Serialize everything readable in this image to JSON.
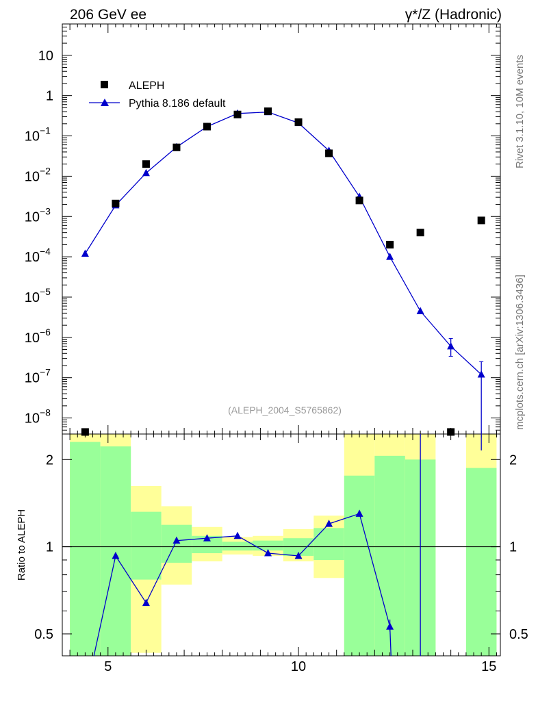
{
  "header": {
    "left_title": "206 GeV ee",
    "right_title": "γ*/Z (Hadronic)",
    "side_label_top": "Rivet 3.1.10,  10M events",
    "side_label_bottom": "mcplots.cern.ch [arXiv:1306.3436]",
    "watermark": "(ALEPH_2004_S5765862)"
  },
  "legend": {
    "position": "top-left",
    "entries": [
      {
        "label": "ALEPH",
        "marker": "square",
        "color": "#000000"
      },
      {
        "label": "Pythia 8.186 default",
        "marker": "triangle-line",
        "color": "#0000cc"
      }
    ]
  },
  "chart_data": [
    {
      "type": "scatter",
      "panel": "main",
      "x_range": [
        3.8,
        15.3
      ],
      "y_scale": "log",
      "y_range": [
        4e-09,
        60
      ],
      "y_tick_labels": [
        {
          "value": 10,
          "label": "10"
        },
        {
          "value": 1,
          "label": "1"
        },
        {
          "value": 0.1,
          "label": "10",
          "exp": "−1"
        },
        {
          "value": 0.01,
          "label": "10",
          "exp": "−2"
        },
        {
          "value": 0.001,
          "label": "10",
          "exp": "−3"
        },
        {
          "value": 0.0001,
          "label": "10",
          "exp": "−4"
        },
        {
          "value": 1e-05,
          "label": "10",
          "exp": "−5"
        },
        {
          "value": 1e-06,
          "label": "10",
          "exp": "−6"
        },
        {
          "value": 1e-07,
          "label": "10",
          "exp": "−7"
        },
        {
          "value": 1e-08,
          "label": "10",
          "exp": "−8"
        }
      ],
      "series": [
        {
          "name": "ALEPH",
          "x": [
            4.4,
            5.2,
            6.0,
            6.8,
            7.6,
            8.4,
            9.2,
            10.0,
            10.8,
            11.6,
            12.4,
            13.2,
            14.0,
            14.8
          ],
          "y": [
            4.5e-09,
            0.0021,
            0.02,
            0.052,
            0.17,
            0.34,
            0.41,
            0.22,
            0.037,
            0.0025,
            0.0002,
            0.0004,
            4.5e-09,
            0.0008
          ]
        },
        {
          "name": "Pythia 8.186 default",
          "x": [
            4.4,
            5.2,
            6.0,
            6.8,
            7.6,
            8.4,
            9.2,
            10.0,
            10.8,
            11.6,
            12.4,
            13.2,
            14.0,
            14.8
          ],
          "y": [
            0.00012,
            0.0019,
            0.012,
            0.053,
            0.17,
            0.36,
            0.39,
            0.21,
            0.043,
            0.0031,
            0.0001,
            4.5e-06,
            6e-07,
            1.2e-07
          ],
          "err_low": [
            0,
            0,
            0,
            0,
            0,
            0,
            0,
            0,
            0,
            0,
            0,
            0,
            2.6e-07,
            1.2e-07
          ],
          "err_high": [
            0,
            0,
            0,
            0,
            0,
            0,
            0,
            0,
            0,
            0,
            0,
            0,
            3.4e-07,
            1.3e-07
          ]
        }
      ]
    },
    {
      "type": "line",
      "panel": "ratio",
      "ylabel": "Ratio to ALEPH",
      "x_range": [
        3.8,
        15.3
      ],
      "y_scale": "log",
      "y_range": [
        0.42,
        2.45
      ],
      "x_tick_labels": [
        {
          "value": 5,
          "label": "5"
        },
        {
          "value": 10,
          "label": "10"
        },
        {
          "value": 15,
          "label": "15"
        }
      ],
      "y_tick_labels": [
        {
          "value": 0.5,
          "label": "0.5"
        },
        {
          "value": 1,
          "label": "1"
        },
        {
          "value": 2,
          "label": "2"
        }
      ],
      "reference_line": 1,
      "bands": {
        "yellow": "#ffff99",
        "green": "#99ff99",
        "bins": [
          {
            "x0": 4.0,
            "x1": 4.8,
            "yellow": [
              0.3,
              2.5
            ],
            "green": [
              0.3,
              2.3
            ]
          },
          {
            "x0": 4.8,
            "x1": 5.6,
            "yellow": [
              0.3,
              2.5
            ],
            "green": [
              0.3,
              2.22
            ]
          },
          {
            "x0": 5.6,
            "x1": 6.4,
            "yellow": [
              0.43,
              1.62
            ],
            "green": [
              0.77,
              1.32
            ]
          },
          {
            "x0": 6.4,
            "x1": 7.2,
            "yellow": [
              0.74,
              1.38
            ],
            "green": [
              0.88,
              1.19
            ]
          },
          {
            "x0": 7.2,
            "x1": 8.0,
            "yellow": [
              0.89,
              1.17
            ],
            "green": [
              0.95,
              1.09
            ]
          },
          {
            "x0": 8.0,
            "x1": 8.8,
            "yellow": [
              0.94,
              1.08
            ],
            "green": [
              0.97,
              1.04
            ]
          },
          {
            "x0": 8.8,
            "x1": 9.6,
            "yellow": [
              0.93,
              1.09
            ],
            "green": [
              0.97,
              1.05
            ]
          },
          {
            "x0": 9.6,
            "x1": 10.4,
            "yellow": [
              0.89,
              1.15
            ],
            "green": [
              0.93,
              1.07
            ]
          },
          {
            "x0": 10.4,
            "x1": 11.2,
            "yellow": [
              0.78,
              1.28
            ],
            "green": [
              0.9,
              1.16
            ]
          },
          {
            "x0": 11.2,
            "x1": 12.0,
            "yellow": [
              0.3,
              2.5
            ],
            "green": [
              0.3,
              1.76
            ]
          },
          {
            "x0": 12.0,
            "x1": 12.8,
            "yellow": [
              0.3,
              2.5
            ],
            "green": [
              0.3,
              2.06
            ]
          },
          {
            "x0": 12.8,
            "x1": 13.6,
            "yellow": [
              0.3,
              2.5
            ],
            "green": [
              0.3,
              2.0
            ]
          },
          {
            "x0": 14.4,
            "x1": 15.2,
            "yellow": [
              0.3,
              2.5
            ],
            "green": [
              0.3,
              1.87
            ]
          }
        ]
      },
      "series": [
        {
          "name": "Pythia 8.186 default",
          "x": [
            5.2,
            6.0,
            6.8,
            7.6,
            8.4,
            9.2,
            10.0,
            10.8,
            11.6,
            12.4
          ],
          "y": [
            0.93,
            0.64,
            1.05,
            1.07,
            1.09,
            0.95,
            0.93,
            1.2,
            1.3,
            0.53
          ],
          "offscale_entries": [
            {
              "from": [
                4.63,
                0.42
              ],
              "to": [
                5.2,
                0.93
              ]
            },
            {
              "from": [
                12.4,
                0.53
              ],
              "to": [
                12.43,
                0.42
              ]
            }
          ],
          "vertical_lines": [
            13.2
          ]
        }
      ]
    }
  ]
}
